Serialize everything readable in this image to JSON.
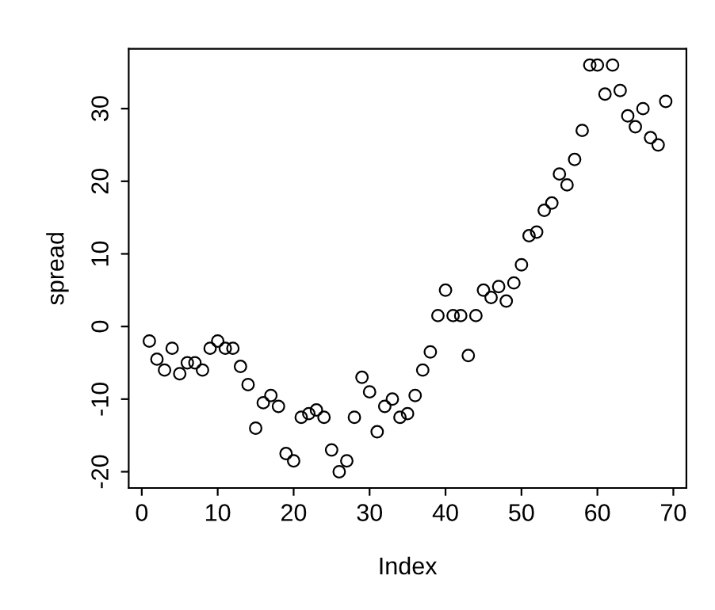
{
  "chart_data": {
    "type": "scatter",
    "xlabel": "Index",
    "ylabel": "spread",
    "x": [
      1,
      2,
      3,
      4,
      5,
      6,
      7,
      8,
      9,
      10,
      11,
      12,
      13,
      14,
      15,
      16,
      17,
      18,
      19,
      20,
      21,
      22,
      23,
      24,
      25,
      26,
      27,
      28,
      29,
      30,
      31,
      32,
      33,
      34,
      35,
      36,
      37,
      38,
      39,
      40,
      41,
      42,
      43,
      44,
      45,
      46,
      47,
      48,
      49,
      50,
      51,
      52,
      53,
      54,
      55,
      56,
      57,
      58,
      59,
      60,
      61,
      62,
      63,
      64,
      65,
      66,
      67,
      68,
      69
    ],
    "values": [
      -2,
      -4.5,
      -6,
      -3,
      -6.5,
      -5,
      -5,
      -6,
      -3,
      -2,
      -3,
      -3,
      -5.5,
      -8,
      -14,
      -10.5,
      -9.5,
      -11,
      -17.5,
      -18.5,
      -12.5,
      -12,
      -11.5,
      -12.5,
      -17,
      -20,
      -18.5,
      -12.5,
      -7,
      -9,
      -14.5,
      -11,
      -10,
      -12.5,
      -12,
      -9.5,
      -6,
      -3.5,
      1.5,
      5,
      1.5,
      1.5,
      -4,
      1.5,
      5,
      4,
      5.5,
      3.5,
      6,
      8.5,
      12.5,
      13,
      16,
      17,
      21,
      19.5,
      23,
      27,
      36,
      36,
      32,
      36,
      32.5,
      29,
      27.5,
      30,
      26,
      25,
      31
    ],
    "color": "#000000",
    "marker": "circle",
    "grid": false,
    "xlim": [
      -1.72,
      71.72
    ],
    "ylim": [
      -22.24,
      38.24
    ],
    "xticks": [
      0,
      10,
      20,
      30,
      40,
      50,
      60,
      70
    ],
    "yticks": [
      -20,
      -10,
      0,
      10,
      20,
      30
    ]
  }
}
